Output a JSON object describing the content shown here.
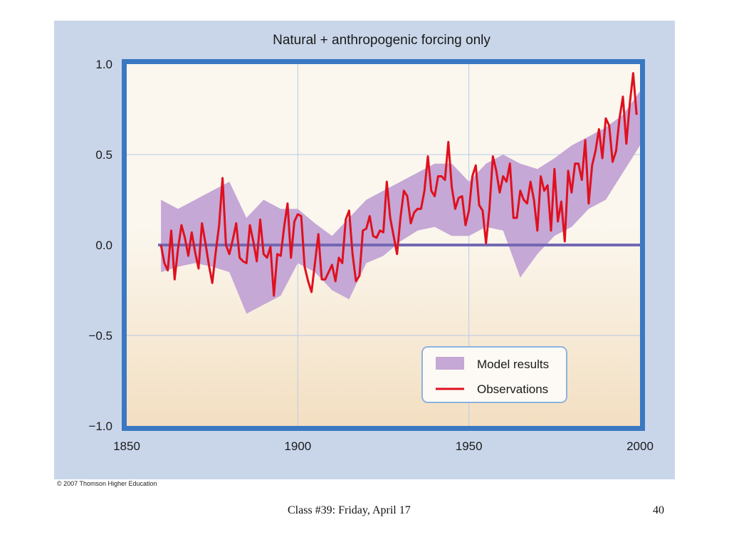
{
  "slide": {
    "copyright": "© 2007 Thomson Higher Education",
    "footer": "Class #39: Friday, April 17",
    "page_number": "40"
  },
  "colors": {
    "panel": "#c9d6ea",
    "frame": "#3b78c2",
    "plot_top": "#fbf7ee",
    "plot_bottom": "#f3dfc2",
    "grid": "#b7cbe6",
    "zero_line": "#7468b4",
    "model_band": "#c5a8d6",
    "observations": "#e0101e"
  },
  "chart_data": {
    "type": "line",
    "title": "Natural + anthropogenic forcing only",
    "xlim": [
      1850,
      2000
    ],
    "ylim": [
      -1.0,
      1.0
    ],
    "x_ticks": [
      1850,
      1900,
      1950,
      2000
    ],
    "x_tick_labels": [
      "1850",
      "1900",
      "1950",
      "2000"
    ],
    "y_ticks": [
      1.0,
      0.5,
      0.0,
      -0.5,
      -1.0
    ],
    "y_tick_labels": [
      "1.0",
      "0.5",
      "0.0",
      "−0.5",
      "−1.0"
    ],
    "grid": true,
    "legend_position": "bottom-right",
    "series": [
      {
        "name": "Model results",
        "kind": "band",
        "x": [
          1860,
          1865,
          1870,
          1875,
          1880,
          1885,
          1890,
          1895,
          1900,
          1905,
          1910,
          1915,
          1920,
          1925,
          1930,
          1935,
          1940,
          1945,
          1950,
          1955,
          1960,
          1965,
          1970,
          1975,
          1980,
          1985,
          1990,
          1995,
          2000
        ],
        "lower": [
          -0.15,
          -0.12,
          -0.1,
          -0.12,
          -0.15,
          -0.38,
          -0.33,
          -0.28,
          -0.1,
          -0.15,
          -0.25,
          -0.3,
          -0.1,
          -0.06,
          0.02,
          0.08,
          0.1,
          0.05,
          0.05,
          0.1,
          0.08,
          -0.18,
          -0.05,
          0.05,
          0.1,
          0.2,
          0.25,
          0.4,
          0.55
        ],
        "upper": [
          0.25,
          0.2,
          0.25,
          0.3,
          0.35,
          0.15,
          0.25,
          0.2,
          0.2,
          0.12,
          0.05,
          0.15,
          0.25,
          0.3,
          0.35,
          0.4,
          0.45,
          0.45,
          0.35,
          0.45,
          0.5,
          0.45,
          0.42,
          0.48,
          0.55,
          0.6,
          0.65,
          0.72,
          0.85
        ]
      },
      {
        "name": "Observations",
        "kind": "line",
        "x": [
          1860,
          1861,
          1862,
          1863,
          1864,
          1865,
          1866,
          1867,
          1868,
          1869,
          1870,
          1871,
          1872,
          1873,
          1874,
          1875,
          1876,
          1877,
          1878,
          1879,
          1880,
          1881,
          1882,
          1883,
          1884,
          1885,
          1886,
          1887,
          1888,
          1889,
          1890,
          1891,
          1892,
          1893,
          1894,
          1895,
          1896,
          1897,
          1898,
          1899,
          1900,
          1901,
          1902,
          1903,
          1904,
          1905,
          1906,
          1907,
          1908,
          1909,
          1910,
          1911,
          1912,
          1913,
          1914,
          1915,
          1916,
          1917,
          1918,
          1919,
          1920,
          1921,
          1922,
          1923,
          1924,
          1925,
          1926,
          1927,
          1928,
          1929,
          1930,
          1931,
          1932,
          1933,
          1934,
          1935,
          1936,
          1937,
          1938,
          1939,
          1940,
          1941,
          1942,
          1943,
          1944,
          1945,
          1946,
          1947,
          1948,
          1949,
          1950,
          1951,
          1952,
          1953,
          1954,
          1955,
          1956,
          1957,
          1958,
          1959,
          1960,
          1961,
          1962,
          1963,
          1964,
          1965,
          1966,
          1967,
          1968,
          1969,
          1970,
          1971,
          1972,
          1973,
          1974,
          1975,
          1976,
          1977,
          1978,
          1979,
          1980,
          1981,
          1982,
          1983,
          1984,
          1985,
          1986,
          1987,
          1988,
          1989,
          1990,
          1991,
          1992,
          1993,
          1994,
          1995,
          1996,
          1997,
          1998,
          1999
        ],
        "y": [
          0.0,
          -0.1,
          -0.14,
          0.08,
          -0.19,
          -0.02,
          0.11,
          0.04,
          -0.06,
          0.07,
          -0.04,
          -0.13,
          0.12,
          0.01,
          -0.11,
          -0.21,
          -0.04,
          0.11,
          0.37,
          0.0,
          -0.05,
          0.03,
          0.12,
          -0.07,
          -0.09,
          -0.1,
          0.11,
          0.02,
          -0.09,
          0.14,
          -0.05,
          -0.07,
          -0.01,
          -0.28,
          -0.05,
          -0.06,
          0.1,
          0.23,
          -0.07,
          0.13,
          0.17,
          0.16,
          -0.12,
          -0.2,
          -0.26,
          -0.1,
          0.06,
          -0.19,
          -0.19,
          -0.15,
          -0.11,
          -0.2,
          -0.07,
          -0.1,
          0.14,
          0.19,
          -0.05,
          -0.2,
          -0.17,
          0.08,
          0.09,
          0.16,
          0.05,
          0.04,
          0.08,
          0.07,
          0.35,
          0.15,
          0.05,
          -0.05,
          0.15,
          0.3,
          0.27,
          0.12,
          0.18,
          0.2,
          0.2,
          0.3,
          0.49,
          0.3,
          0.27,
          0.38,
          0.38,
          0.36,
          0.57,
          0.32,
          0.2,
          0.26,
          0.27,
          0.11,
          0.19,
          0.38,
          0.44,
          0.22,
          0.19,
          0.01,
          0.2,
          0.49,
          0.41,
          0.29,
          0.38,
          0.35,
          0.45,
          0.15,
          0.15,
          0.3,
          0.25,
          0.23,
          0.35,
          0.25,
          0.08,
          0.38,
          0.3,
          0.33,
          0.08,
          0.42,
          0.13,
          0.24,
          0.02,
          0.41,
          0.29,
          0.45,
          0.45,
          0.36,
          0.58,
          0.23,
          0.44,
          0.52,
          0.64,
          0.48,
          0.7,
          0.66,
          0.46,
          0.52,
          0.7,
          0.82,
          0.56,
          0.78,
          0.95,
          0.72
        ]
      }
    ]
  }
}
